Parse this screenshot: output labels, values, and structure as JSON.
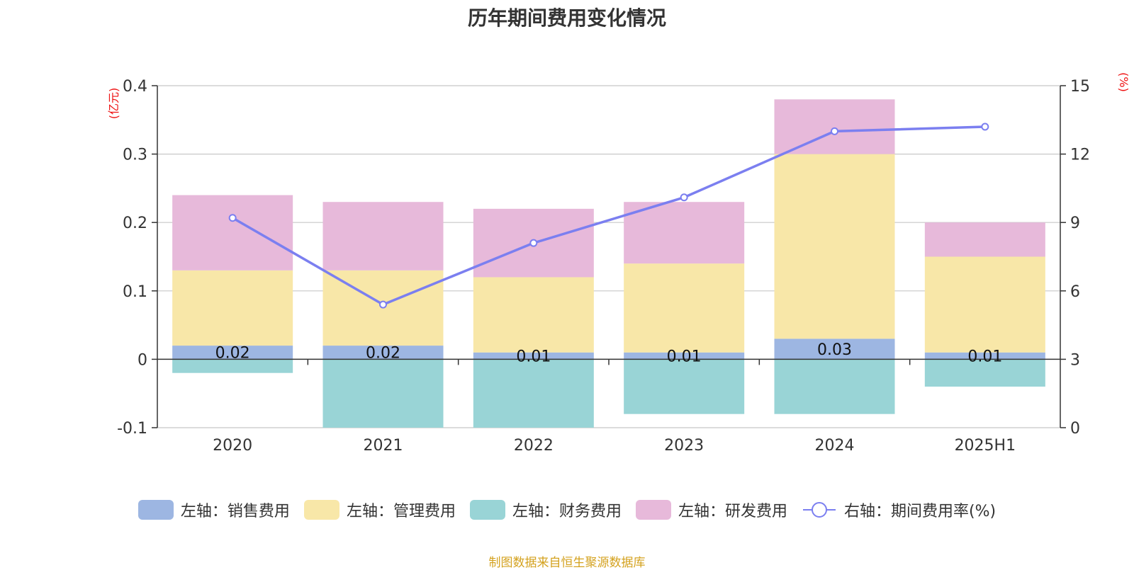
{
  "chart_data": {
    "type": "bar",
    "title": "历年期间费用变化情况",
    "categories": [
      "2020",
      "2021",
      "2022",
      "2023",
      "2024",
      "2025H1"
    ],
    "left_axis": {
      "unit": "(亿元)",
      "ylim": [
        -0.1,
        0.4
      ],
      "ticks": [
        "-0.1",
        "0",
        "0.1",
        "0.2",
        "0.3",
        "0.4"
      ]
    },
    "right_axis": {
      "unit": "(%)",
      "ylim": [
        0,
        15
      ],
      "ticks": [
        "0",
        "3",
        "6",
        "9",
        "12",
        "15"
      ]
    },
    "series": [
      {
        "name": "左轴：销售费用",
        "axis": "left",
        "chart": "bar",
        "color": "#9db6e2",
        "values": [
          0.02,
          0.02,
          0.01,
          0.01,
          0.03,
          0.01
        ],
        "labels": [
          "0.02",
          "0.02",
          "0.01",
          "0.01",
          "0.03",
          "0.01"
        ]
      },
      {
        "name": "左轴：管理费用",
        "axis": "left",
        "chart": "bar",
        "color": "#f8e7a8",
        "values": [
          0.11,
          0.11,
          0.11,
          0.13,
          0.27,
          0.14
        ]
      },
      {
        "name": "左轴：财务费用",
        "axis": "left",
        "chart": "bar",
        "color": "#99d4d6",
        "values": [
          -0.02,
          -0.1,
          -0.1,
          -0.08,
          -0.08,
          -0.04
        ]
      },
      {
        "name": "左轴：研发费用",
        "axis": "left",
        "chart": "bar",
        "color": "#e7b9da",
        "values": [
          0.11,
          0.1,
          0.1,
          0.09,
          0.08,
          0.05
        ]
      },
      {
        "name": "右轴：期间费用率(%)",
        "axis": "right",
        "chart": "line",
        "color": "#7b7ff0",
        "values": [
          9.2,
          5.4,
          8.1,
          10.1,
          13.0,
          13.2
        ]
      }
    ],
    "grid": true,
    "legend_position": "bottom"
  },
  "source_note": "制图数据来自恒生聚源数据库"
}
